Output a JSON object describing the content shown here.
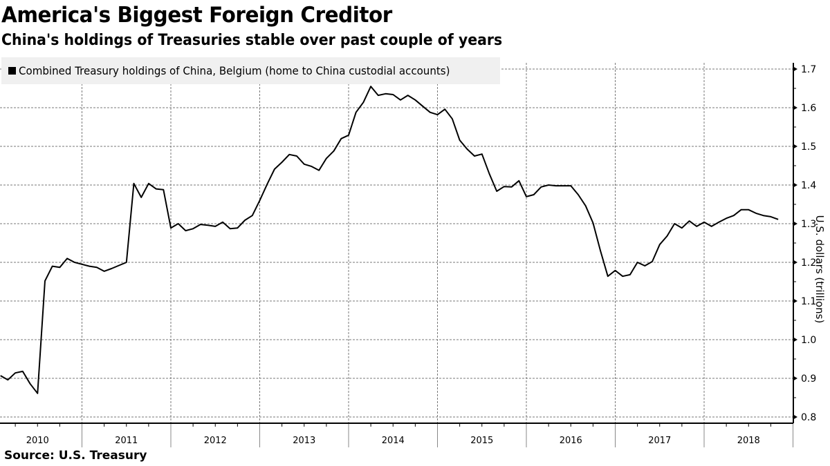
{
  "header": {
    "title": "America's Biggest Foreign Creditor",
    "subtitle": "China's holdings of Treasuries stable over past couple of years"
  },
  "legend": {
    "label": "Combined Treasury holdings of China, Belgium (home to China custodial accounts)",
    "color": "#000000"
  },
  "footer": {
    "source": "Source: U.S. Treasury"
  },
  "axis": {
    "ylabel": "U.S. dollars (trillions)"
  },
  "chart_data": {
    "type": "line",
    "title": "America's Biggest Foreign Creditor",
    "subtitle": "China's holdings of Treasuries stable over past couple of years",
    "xlabel": "",
    "ylabel": "U.S. dollars (trillions)",
    "ylim": [
      0.8,
      1.7
    ],
    "yticks": [
      0.8,
      0.9,
      1.0,
      1.1,
      1.2,
      1.3,
      1.4,
      1.5,
      1.6,
      1.7
    ],
    "xticks": [
      "2010",
      "2011",
      "2012",
      "2013",
      "2014",
      "2015",
      "2016",
      "2017",
      "2018"
    ],
    "grid": true,
    "legend_position": "top-left",
    "y_axis_position": "right",
    "x_start": "2010-01",
    "x_frequency": "monthly",
    "series": [
      {
        "name": "Combined Treasury holdings of China, Belgium (home to China custodial accounts)",
        "color": "#000000",
        "values": [
          0.907,
          0.896,
          0.914,
          0.918,
          0.886,
          0.861,
          1.152,
          1.19,
          1.187,
          1.21,
          1.2,
          1.195,
          1.19,
          1.187,
          1.177,
          1.184,
          1.192,
          1.2,
          1.404,
          1.368,
          1.404,
          1.39,
          1.388,
          1.289,
          1.3,
          1.282,
          1.287,
          1.298,
          1.296,
          1.293,
          1.304,
          1.287,
          1.289,
          1.309,
          1.321,
          1.36,
          1.402,
          1.441,
          1.459,
          1.479,
          1.475,
          1.454,
          1.448,
          1.438,
          1.469,
          1.488,
          1.52,
          1.529,
          1.588,
          1.614,
          1.655,
          1.632,
          1.636,
          1.634,
          1.62,
          1.632,
          1.62,
          1.604,
          1.588,
          1.582,
          1.596,
          1.571,
          1.516,
          1.493,
          1.475,
          1.48,
          1.429,
          1.384,
          1.396,
          1.395,
          1.411,
          1.37,
          1.375,
          1.395,
          1.4,
          1.398,
          1.398,
          1.398,
          1.375,
          1.346,
          1.302,
          1.23,
          1.164,
          1.179,
          1.164,
          1.168,
          1.2,
          1.191,
          1.202,
          1.246,
          1.268,
          1.3,
          1.289,
          1.307,
          1.293,
          1.304,
          1.293,
          1.304,
          1.314,
          1.321,
          1.336,
          1.336,
          1.327,
          1.321,
          1.318,
          1.311
        ]
      }
    ]
  }
}
